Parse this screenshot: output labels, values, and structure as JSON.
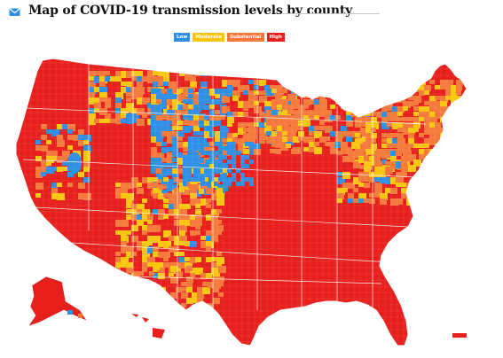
{
  "header": {
    "icon": "envelope-icon",
    "title": "Map of COVID-19 transmission levels by county"
  },
  "legend": {
    "items": [
      {
        "label": "Low",
        "color": "#2f8fe6"
      },
      {
        "label": "Moderate",
        "color": "#f9c511"
      },
      {
        "label": "Substantial",
        "color": "#f5793b"
      },
      {
        "label": "High",
        "color": "#e8201d"
      }
    ]
  },
  "map": {
    "base_color": "#e8201d",
    "region_colors": {
      "low": "#2f8fe6",
      "moderate": "#f9c511",
      "substantial": "#f5793b",
      "high": "#e8201d"
    }
  }
}
